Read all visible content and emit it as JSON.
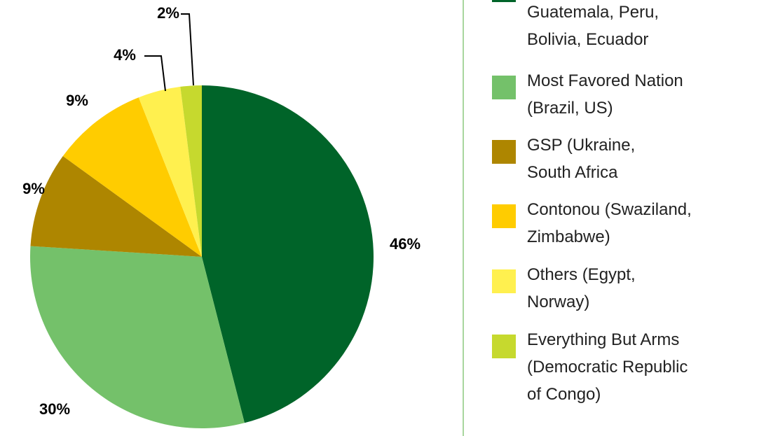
{
  "chart_data": {
    "type": "pie",
    "categories": [
      "Guatemala, Peru,\nBolivia, Ecuador",
      "Most Favored Nation\n(Brazil, US)",
      "GSP (Ukraine,\nSouth Africa",
      "Contonou (Swaziland,\nZimbabwe)",
      "Others (Egypt,\nNorway)",
      "Everything But Arms\n(Democratic Republic\nof Congo)"
    ],
    "values": [
      46,
      30,
      9,
      9,
      4,
      2
    ],
    "value_labels": [
      "46%",
      "30%",
      "9%",
      "9%",
      "4%",
      "2%"
    ],
    "colors": [
      "#006429",
      "#74c16a",
      "#ae8600",
      "#ffcc00",
      "#fff04f",
      "#c6d92e"
    ]
  }
}
